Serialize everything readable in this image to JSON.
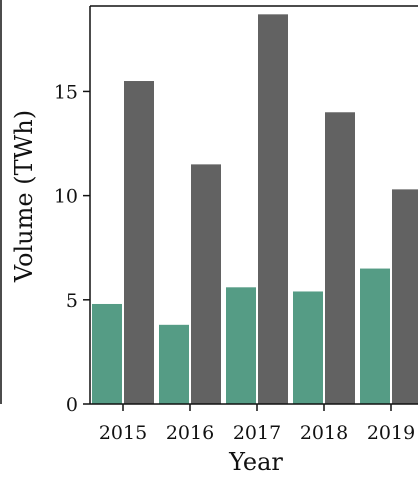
{
  "chart_data": {
    "type": "bar",
    "xlabel": "Year",
    "ylabel": "Volume (TWh)",
    "categories": [
      "2015",
      "2016",
      "2017",
      "2018",
      "2019"
    ],
    "series": [
      {
        "color": "#559c85",
        "values": [
          4.8,
          3.8,
          5.6,
          5.4,
          6.5
        ]
      },
      {
        "color": "#626262",
        "values": [
          15.5,
          11.5,
          18.7,
          14.0,
          10.3
        ]
      }
    ],
    "yticks": [
      0,
      5,
      10,
      15
    ],
    "ylim": [
      0,
      19.1
    ],
    "grid": false,
    "legend": "none"
  }
}
